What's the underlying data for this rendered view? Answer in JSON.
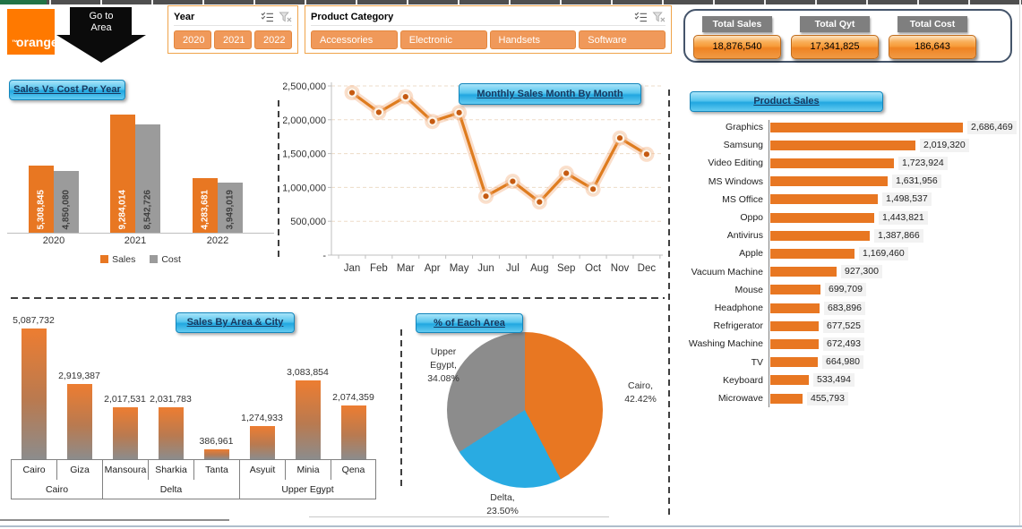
{
  "header": {
    "logo_text": "orange",
    "logo_tm": "™",
    "go_to_area_label": "Go to Area",
    "year_slicer": {
      "title": "Year",
      "options": [
        "2020",
        "2021",
        "2022"
      ]
    },
    "category_slicer": {
      "title": "Product Category",
      "options": [
        "Accessories",
        "Electronic",
        "Handsets",
        "Software"
      ]
    },
    "totals": [
      {
        "label": "Total Sales",
        "value": "18,876,540"
      },
      {
        "label": "Total Qyt",
        "value": "17,341,825"
      },
      {
        "label": "Total Cost",
        "value": "186,643"
      }
    ]
  },
  "colors": {
    "orange": "#E87722",
    "slicer_button": "#F0995A",
    "cost_gray": "#9B9B9B",
    "pie_blue": "#29ABE2",
    "pie_gray": "#8C8C8C",
    "pill_text": "#17375E",
    "totals_border": "#44546A"
  },
  "chart_data": [
    {
      "id": "sales_vs_cost",
      "type": "bar",
      "title": "Sales Vs Cost Per Year",
      "categories": [
        "2020",
        "2021",
        "2022"
      ],
      "series": [
        {
          "name": "Sales",
          "color": "#E87722",
          "values": [
            5308845,
            9284014,
            4283681
          ],
          "labels": [
            "5,308,845",
            "9,284,014",
            "4,283,681"
          ]
        },
        {
          "name": "Cost",
          "color": "#9B9B9B",
          "values": [
            4850080,
            8542726,
            3949019
          ],
          "labels": [
            "4,850,080",
            "8,542,726",
            "3,949,019"
          ]
        }
      ],
      "ylim": [
        0,
        9284014
      ],
      "legend_position": "bottom"
    },
    {
      "id": "monthly_sales",
      "type": "line",
      "title": "Monthly Sales Month By Month",
      "x": [
        "Jan",
        "Feb",
        "Mar",
        "Apr",
        "May",
        "Jun",
        "Jul",
        "Aug",
        "Sep",
        "Oct",
        "Nov",
        "Dec"
      ],
      "values": [
        2400000,
        2110000,
        2340000,
        1975000,
        2105000,
        870000,
        1090000,
        785000,
        1210000,
        975000,
        1730000,
        1490000
      ],
      "ylim": [
        0,
        2500000
      ],
      "ytick_labels_top_down": [
        "2,500,000",
        "2,000,000",
        "1,500,000",
        "1,000,000",
        "500,000",
        "-"
      ],
      "grid": "horizontal-dashed",
      "line_color": "#DE7C1F"
    },
    {
      "id": "product_sales",
      "type": "bar-horizontal",
      "title": "Product Sales",
      "categories": [
        "Graphics",
        "Samsung",
        "Video Editing",
        "MS Windows",
        "MS Office",
        "Oppo",
        "Antivirus",
        "Apple",
        "Vacuum Machine",
        "Mouse",
        "Headphone",
        "Refrigerator",
        "Washing Machine",
        "TV",
        "Keyboard",
        "Microwave"
      ],
      "values": [
        2686469,
        2019320,
        1723924,
        1631956,
        1498537,
        1443821,
        1387866,
        1169460,
        927300,
        699709,
        683896,
        677525,
        672493,
        664980,
        533494,
        455793
      ],
      "labels": [
        "2,686,469",
        "2,019,320",
        "1,723,924",
        "1,631,956",
        "1,498,537",
        "1,443,821",
        "1,387,866",
        "1,169,460",
        "927,300",
        "699,709",
        "683,896",
        "677,525",
        "672,493",
        "664,980",
        "533,494",
        "455,793"
      ],
      "bar_color": "#E87722"
    },
    {
      "id": "sales_by_area_city",
      "type": "bar",
      "title": "Sales By Area & City",
      "groups": [
        {
          "area": "Cairo",
          "cities": [
            "Cairo",
            "Giza"
          ],
          "values": [
            5087732,
            2919387
          ],
          "labels": [
            "5,087,732",
            "2,919,387"
          ]
        },
        {
          "area": "Delta",
          "cities": [
            "Mansoura",
            "Sharkia",
            "Tanta"
          ],
          "values": [
            2017531,
            2031783,
            386961
          ],
          "labels": [
            "2,017,531",
            "2,031,783",
            "386,961"
          ]
        },
        {
          "area": "Upper Egypt",
          "cities": [
            "Asyuit",
            "Minia",
            "Qena"
          ],
          "values": [
            1274933,
            3083854,
            2074359
          ],
          "labels": [
            "1,274,933",
            "3,083,854",
            "2,074,359"
          ]
        }
      ],
      "ylim": [
        0,
        5087732
      ]
    },
    {
      "id": "area_share",
      "type": "pie",
      "title": "% of Each Area",
      "slices": [
        {
          "label": "Cairo",
          "pct": 42.42,
          "color": "#E87722",
          "display_lines": [
            "Cairo,",
            "42.42%"
          ]
        },
        {
          "label": "Delta",
          "pct": 23.5,
          "color": "#29ABE2",
          "display_lines": [
            "Delta,",
            "23.50%"
          ]
        },
        {
          "label": "Upper Egypt",
          "pct": 34.08,
          "color": "#8C8C8C",
          "display_lines": [
            "Upper",
            "Egypt,",
            "34.08%"
          ]
        }
      ],
      "start_angle_deg": 0
    }
  ]
}
